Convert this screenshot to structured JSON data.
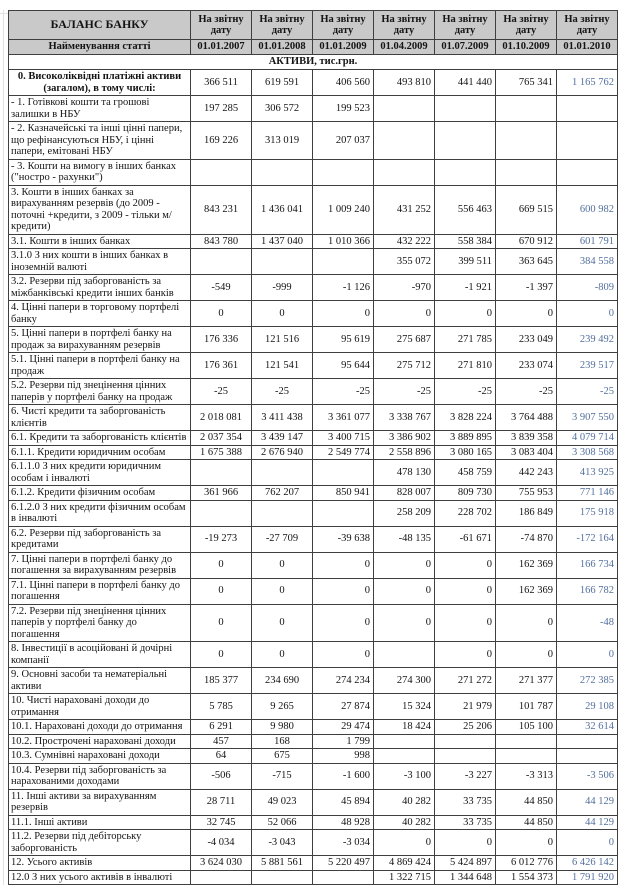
{
  "colors": {
    "header_bg": "#c9c9c9",
    "border": "#3f3f3f",
    "text": "#141414",
    "last_col_text": "#54709e",
    "gridline": "#e2e2e2"
  },
  "header": {
    "title": "БАЛАНС БАНКУ",
    "subtitle": "Найменування статті",
    "period_label": "На звітну дату",
    "dates": [
      "01.01.2007",
      "01.01.2008",
      "01.01.2009",
      "01.04.2009",
      "01.07.2009",
      "01.10.2009",
      "01.01.2010"
    ]
  },
  "section": {
    "label": "АКТИВИ, тис.грн."
  },
  "rows": [
    {
      "label": "0. Високоліквідні платіжні активи (загалом), в тому числі:",
      "bold": true,
      "center": true,
      "values": [
        "366 511",
        "619 591",
        "406 560",
        "493 810",
        "441 440",
        "765 341",
        "1 165 762"
      ]
    },
    {
      "label": "- 1. Готівкові кошти та грошові залишки в НБУ",
      "values": [
        "197 285",
        "306 572",
        "199 523",
        "",
        "",
        "",
        ""
      ]
    },
    {
      "label": "- 2. Казначейські та інші цінні папери, що рефінансуються НБУ, і цінні папери, емітовані НБУ",
      "values": [
        "169 226",
        "313 019",
        "207 037",
        "",
        "",
        "",
        ""
      ]
    },
    {
      "label": "- 3. Кошти на вимогу в інших банках (\"ностро - рахунки\")",
      "values": [
        "",
        "",
        "",
        "",
        "",
        "",
        ""
      ]
    },
    {
      "label": "3. Кошти в інших банках за вирахуванням резервів (до 2009 - поточні +кредити, з 2009 - тільки м/кредити)",
      "values": [
        "843 231",
        "1 436 041",
        "1 009 240",
        "431 252",
        "556 463",
        "669 515",
        "600 982"
      ]
    },
    {
      "label": "3.1. Кошти в інших банках",
      "values": [
        "843 780",
        "1 437 040",
        "1 010 366",
        "432 222",
        "558 384",
        "670 912",
        "601 791"
      ]
    },
    {
      "label": "3.1.0 З них кошти в інших банках в іноземній валюті",
      "values": [
        "",
        "",
        "",
        "355 072",
        "399 511",
        "363 645",
        "384 558"
      ]
    },
    {
      "label": "3.2. Резерви під заборгованість за міжбанківські кредити  інших банків",
      "values": [
        "-549",
        "-999",
        "-1 126",
        "-970",
        "-1 921",
        "-1 397",
        "-809"
      ]
    },
    {
      "label": "4. Цінні папери в торговому портфелі банку",
      "values": [
        "0",
        "0",
        "0",
        "0",
        "0",
        "0",
        "0"
      ]
    },
    {
      "label": "5. Цінні папери в портфелі банку на продаж за вирахуванням резервів",
      "values": [
        "176 336",
        "121 516",
        "95 619",
        "275 687",
        "271 785",
        "233 049",
        "239 492"
      ]
    },
    {
      "label": "5.1. Цінні папери в портфелі банку на продаж",
      "values": [
        "176 361",
        "121 541",
        "95 644",
        "275 712",
        "271 810",
        "233 074",
        "239 517"
      ]
    },
    {
      "label": "5.2. Резерви під знецінення цінних паперів у портфелі банку на продаж",
      "values": [
        "-25",
        "-25",
        "-25",
        "-25",
        "-25",
        "-25",
        "-25"
      ]
    },
    {
      "label": "6. Чисті кредити та заборгованість клієнтів",
      "values": [
        "2 018 081",
        "3 411 438",
        "3 361 077",
        "3 338 767",
        "3 828 224",
        "3 764 488",
        "3 907 550"
      ]
    },
    {
      "label": "6.1. Кредити та заборгованість клієнтів",
      "values": [
        "2 037 354",
        "3 439 147",
        "3 400 715",
        "3 386 902",
        "3 889 895",
        "3 839 358",
        "4 079 714"
      ]
    },
    {
      "label": "6.1.1. Кредити юридичним особам",
      "values": [
        "1 675 388",
        "2 676 940",
        "2 549 774",
        "2 558 896",
        "3 080 165",
        "3 083 404",
        "3 308 568"
      ]
    },
    {
      "label": "6.1.1.0 З них кредити юридичним особам і інвалюті",
      "values": [
        "",
        "",
        "",
        "478 130",
        "458 759",
        "442 243",
        "413 925"
      ]
    },
    {
      "label": "6.1.2. Кредити фізичним особам",
      "values": [
        "361 966",
        "762 207",
        "850 941",
        "828 007",
        "809 730",
        "755 953",
        "771 146"
      ]
    },
    {
      "label": "6.1.2.0 З них кредити фізичним особам в інвалюті",
      "values": [
        "",
        "",
        "",
        "258 209",
        "228 702",
        "186 849",
        "175 918"
      ]
    },
    {
      "label": "6.2. Резерви під заборгованість за кредитами",
      "values": [
        "-19 273",
        "-27 709",
        "-39 638",
        "-48 135",
        "-61 671",
        "-74 870",
        "-172 164"
      ]
    },
    {
      "label": "7. Цінні папери в портфелі банку до погашення за вирахуванням резервів",
      "values": [
        "0",
        "0",
        "0",
        "0",
        "0",
        "162 369",
        "166 734"
      ]
    },
    {
      "label": "7.1. Цінні папери в портфелі банку до погашення",
      "values": [
        "0",
        "0",
        "0",
        "0",
        "0",
        "162 369",
        "166 782"
      ]
    },
    {
      "label": "7.2. Резерви під знецінення цінних паперів у портфелі банку до погашення",
      "values": [
        "0",
        "0",
        "0",
        "0",
        "0",
        "0",
        "-48"
      ]
    },
    {
      "label": "8. Інвестиції в асоційовані й дочірні компанії",
      "values": [
        "0",
        "0",
        "0",
        "",
        "0",
        "0",
        "0"
      ]
    },
    {
      "label": "9. Основні засоби та нематеріальні активи",
      "values": [
        "185 377",
        "234 690",
        "274 234",
        "274 300",
        "271 272",
        "271 377",
        "272 385"
      ]
    },
    {
      "label": "10. Чисті нараховані доходи до отримання",
      "values": [
        "5 785",
        "9 265",
        "27 874",
        "15 324",
        "21 979",
        "101 787",
        "29 108"
      ]
    },
    {
      "label": "10.1. Нараховані доходи до отримання",
      "values": [
        "6 291",
        "9 980",
        "29 474",
        "18 424",
        "25 206",
        "105 100",
        "32 614"
      ]
    },
    {
      "label": "10.2. Прострочені нараховані доходи",
      "values": [
        "457",
        "168",
        "1 799",
        "",
        "",
        "",
        ""
      ]
    },
    {
      "label": "10.3. Сумнівні нараховані доходи",
      "values": [
        "64",
        "675",
        "998",
        "",
        "",
        "",
        ""
      ]
    },
    {
      "label": "10.4. Резерви під заборгованість за нарахованими доходами",
      "values": [
        "-506",
        "-715",
        "-1 600",
        "-3 100",
        "-3 227",
        "-3 313",
        "-3 506"
      ]
    },
    {
      "label": "11. Інші активи за вирахуванням резервів",
      "values": [
        "28 711",
        "49 023",
        "45 894",
        "40 282",
        "33 735",
        "44 850",
        "44 129"
      ]
    },
    {
      "label": "11.1. Інші активи",
      "values": [
        "32 745",
        "52 066",
        "48 928",
        "40 282",
        "33 735",
        "44 850",
        "44 129"
      ]
    },
    {
      "label": "11.2. Резерви під дебіторську заборгованість",
      "values": [
        "-4 034",
        "-3 043",
        "-3 034",
        "0",
        "0",
        "0",
        "0"
      ]
    },
    {
      "label": "12. Усього активів",
      "values": [
        "3 624 030",
        "5 881 561",
        "5 220 497",
        "4 869 424",
        "5 424 897",
        "6 012 776",
        "6 426 142"
      ]
    },
    {
      "label": "12.0 З них усього активів в інвалюті",
      "values": [
        "",
        "",
        "",
        "1 322 715",
        "1 344 648",
        "1 554 373",
        "1 791 920"
      ]
    }
  ]
}
